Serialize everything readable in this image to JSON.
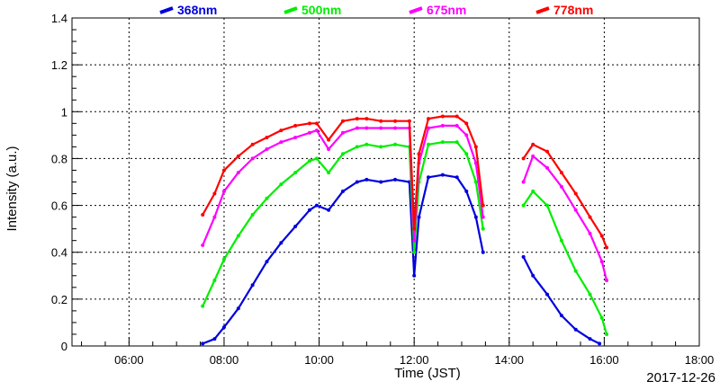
{
  "chart_data": {
    "type": "scatter",
    "title": "",
    "xlabel": "Time (JST)",
    "ylabel": "Intensity (a.u.)",
    "date_label": "2017-12-26",
    "x_unit": "hours (JST)",
    "xlim": [
      4.8,
      18.0
    ],
    "ylim": [
      0,
      1.4
    ],
    "x_ticks": [
      {
        "value": 6,
        "label": "06:00"
      },
      {
        "value": 8,
        "label": "08:00"
      },
      {
        "value": 10,
        "label": "10:00"
      },
      {
        "value": 12,
        "label": "12:00"
      },
      {
        "value": 14,
        "label": "14:00"
      },
      {
        "value": 16,
        "label": "16:00"
      },
      {
        "value": 18,
        "label": "18:00"
      }
    ],
    "y_ticks": [
      {
        "value": 0,
        "label": "0"
      },
      {
        "value": 0.2,
        "label": "0.2"
      },
      {
        "value": 0.4,
        "label": "0.4"
      },
      {
        "value": 0.6,
        "label": "0.6"
      },
      {
        "value": 0.8,
        "label": "0.8"
      },
      {
        "value": 1,
        "label": "1"
      },
      {
        "value": 1.2,
        "label": "1.2"
      },
      {
        "value": 1.4,
        "label": "1.4"
      }
    ],
    "grid": true,
    "legend_position": "top",
    "series": [
      {
        "name": "368nm",
        "color": "#0000dd",
        "x": [
          7.55,
          7.8,
          8.0,
          8.3,
          8.6,
          8.9,
          9.2,
          9.5,
          9.8,
          9.95,
          10.2,
          10.5,
          10.8,
          11.0,
          11.3,
          11.6,
          11.9,
          12.0,
          12.1,
          12.3,
          12.6,
          12.9,
          13.1,
          13.3,
          13.45,
          14.3,
          14.5,
          14.8,
          15.1,
          15.4,
          15.7,
          15.9
        ],
        "y": [
          0.01,
          0.03,
          0.08,
          0.16,
          0.26,
          0.36,
          0.44,
          0.51,
          0.58,
          0.6,
          0.58,
          0.66,
          0.7,
          0.71,
          0.7,
          0.71,
          0.7,
          0.3,
          0.55,
          0.72,
          0.73,
          0.72,
          0.66,
          0.55,
          0.4,
          0.38,
          0.3,
          0.22,
          0.13,
          0.07,
          0.03,
          0.01
        ]
      },
      {
        "name": "500nm",
        "color": "#00ee00",
        "x": [
          7.55,
          7.8,
          8.0,
          8.3,
          8.6,
          8.9,
          9.2,
          9.5,
          9.8,
          9.95,
          10.2,
          10.5,
          10.8,
          11.0,
          11.3,
          11.6,
          11.9,
          12.0,
          12.1,
          12.3,
          12.6,
          12.9,
          13.1,
          13.3,
          13.45,
          14.3,
          14.5,
          14.8,
          15.1,
          15.4,
          15.7,
          15.95,
          16.05
        ],
        "y": [
          0.17,
          0.28,
          0.37,
          0.47,
          0.56,
          0.63,
          0.69,
          0.74,
          0.79,
          0.8,
          0.74,
          0.82,
          0.85,
          0.86,
          0.85,
          0.86,
          0.85,
          0.4,
          0.7,
          0.86,
          0.87,
          0.87,
          0.82,
          0.7,
          0.5,
          0.6,
          0.66,
          0.6,
          0.45,
          0.32,
          0.22,
          0.12,
          0.05
        ]
      },
      {
        "name": "675nm",
        "color": "#ff00ff",
        "x": [
          7.55,
          7.8,
          8.0,
          8.3,
          8.6,
          8.9,
          9.2,
          9.5,
          9.8,
          9.95,
          10.2,
          10.5,
          10.8,
          11.0,
          11.3,
          11.6,
          11.9,
          12.0,
          12.1,
          12.3,
          12.6,
          12.9,
          13.1,
          13.3,
          13.45,
          14.3,
          14.5,
          14.8,
          15.1,
          15.4,
          15.7,
          15.95,
          16.05
        ],
        "y": [
          0.43,
          0.55,
          0.66,
          0.74,
          0.8,
          0.84,
          0.87,
          0.89,
          0.91,
          0.92,
          0.84,
          0.91,
          0.93,
          0.93,
          0.93,
          0.93,
          0.93,
          0.45,
          0.78,
          0.93,
          0.94,
          0.94,
          0.9,
          0.78,
          0.55,
          0.7,
          0.81,
          0.76,
          0.68,
          0.58,
          0.48,
          0.36,
          0.28
        ]
      },
      {
        "name": "778nm",
        "color": "#ff0000",
        "x": [
          7.55,
          7.8,
          8.0,
          8.3,
          8.6,
          8.9,
          9.2,
          9.5,
          9.8,
          9.95,
          10.2,
          10.5,
          10.8,
          11.0,
          11.3,
          11.6,
          11.9,
          12.0,
          12.1,
          12.3,
          12.6,
          12.9,
          13.1,
          13.3,
          13.45,
          14.3,
          14.5,
          14.8,
          15.1,
          15.4,
          15.7,
          15.95,
          16.05
        ],
        "y": [
          0.56,
          0.65,
          0.75,
          0.81,
          0.86,
          0.89,
          0.92,
          0.94,
          0.95,
          0.95,
          0.88,
          0.96,
          0.97,
          0.97,
          0.96,
          0.96,
          0.96,
          0.5,
          0.82,
          0.97,
          0.98,
          0.98,
          0.95,
          0.85,
          0.6,
          0.8,
          0.86,
          0.83,
          0.74,
          0.65,
          0.55,
          0.47,
          0.42
        ]
      }
    ]
  }
}
